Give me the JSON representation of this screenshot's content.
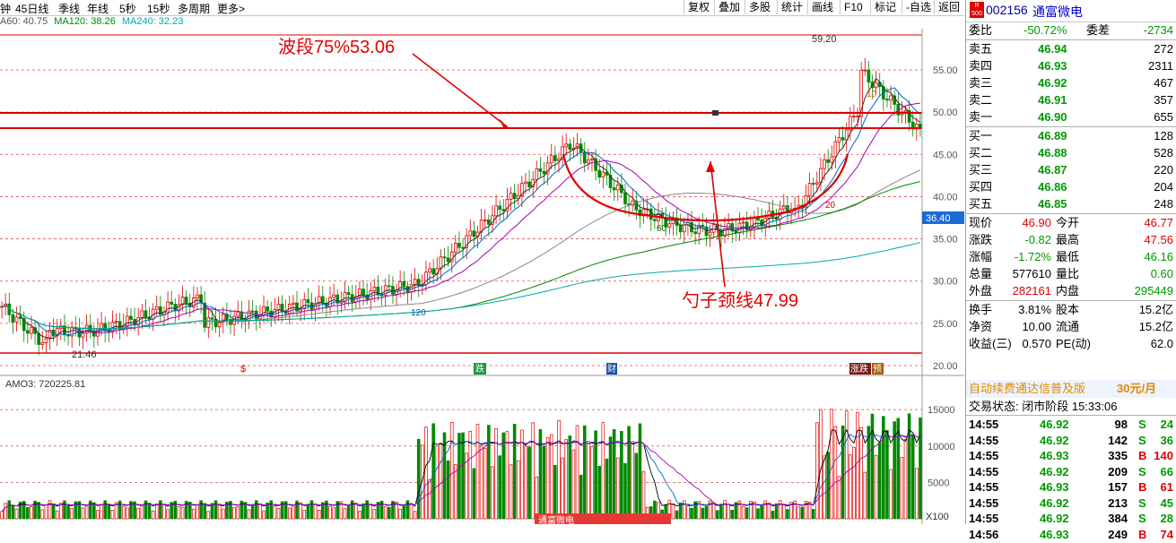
{
  "toolbar": {
    "periods": [
      "钟",
      "45日线",
      "季线",
      "年线",
      "5秒",
      "15秒",
      "多周期",
      "更多>"
    ],
    "buttons": [
      "复权",
      "叠加",
      "多股",
      "统计",
      "画线",
      "F10",
      "标记",
      "-自选",
      "返回"
    ]
  },
  "ma_legend": [
    {
      "label": "A60: 40.75",
      "color": "#555555"
    },
    {
      "label": "MA120: 38.26",
      "color": "#008800"
    },
    {
      "label": "MA240: 32.23",
      "color": "#00aaaa"
    }
  ],
  "annotations": {
    "wave_label": "波段75%53.06",
    "neckline_label": "勺子颈线47.99",
    "high_label": "59.20",
    "low_label": "21.46",
    "current_price_tag": "36.40",
    "ma_marks": [
      "60",
      "120",
      "20",
      "10"
    ],
    "event_markers": [
      "$",
      "跌",
      "财",
      "涨跌",
      "预"
    ]
  },
  "price_axis": {
    "ticks": [
      "55.00",
      "50.00",
      "45.00",
      "40.00",
      "35.00",
      "30.00",
      "25.00",
      "20.00"
    ]
  },
  "volume": {
    "indicator": "AMO3: 720225.81",
    "ticks": [
      "15000",
      "10000",
      "5000"
    ],
    "unit": "X100",
    "tab": "通富微电"
  },
  "chart_data": {
    "type": "candlestick",
    "title": "",
    "ylim": [
      20,
      60
    ],
    "price_levels": {
      "wave_75": 53.06,
      "neckline": 47.99,
      "line_50": 50.0,
      "high": 59.2,
      "low": 21.46
    }
  },
  "quote": {
    "badge": "R 500",
    "code": "002156",
    "name": "通富微电",
    "weibi": {
      "label": "委比",
      "value": "-50.72%",
      "label2": "委差",
      "value2": "-2734"
    },
    "asks": [
      {
        "label": "卖五",
        "price": "46.94",
        "vol": "272"
      },
      {
        "label": "卖四",
        "price": "46.93",
        "vol": "2311"
      },
      {
        "label": "卖三",
        "price": "46.92",
        "vol": "467"
      },
      {
        "label": "卖二",
        "price": "46.91",
        "vol": "357"
      },
      {
        "label": "卖一",
        "price": "46.90",
        "vol": "655"
      }
    ],
    "bids": [
      {
        "label": "买一",
        "price": "46.89",
        "vol": "128"
      },
      {
        "label": "买二",
        "price": "46.88",
        "vol": "528"
      },
      {
        "label": "买三",
        "price": "46.87",
        "vol": "220"
      },
      {
        "label": "买四",
        "price": "46.86",
        "vol": "204"
      },
      {
        "label": "买五",
        "price": "46.85",
        "vol": "248"
      }
    ],
    "stats": [
      {
        "l1": "现价",
        "v1": "46.90",
        "c1": "red",
        "l2": "今开",
        "v2": "46.77",
        "c2": "red"
      },
      {
        "l1": "涨跌",
        "v1": "-0.82",
        "c1": "green",
        "l2": "最高",
        "v2": "47.56",
        "c2": "red"
      },
      {
        "l1": "涨幅",
        "v1": "-1.72%",
        "c1": "green",
        "l2": "最低",
        "v2": "46.16",
        "c2": "green"
      },
      {
        "l1": "总量",
        "v1": "577610",
        "c1": "black",
        "l2": "量比",
        "v2": "0.60",
        "c2": "green"
      },
      {
        "l1": "外盘",
        "v1": "282161",
        "c1": "red",
        "l2": "内盘",
        "v2": "295449",
        "c2": "green"
      }
    ],
    "stats2": [
      {
        "l1": "换手",
        "v1": "3.81%",
        "l2": "股本",
        "v2": "15.2亿"
      },
      {
        "l1": "净资",
        "v1": "10.00",
        "l2": "流通",
        "v2": "15.2亿"
      },
      {
        "l1": "收益(三)",
        "v1": "0.570",
        "l2": "PE(动)",
        "v2": "62.0"
      }
    ],
    "promo": {
      "text": "自动续费通达信普及版",
      "price": "30元/月"
    },
    "trade_status": "交易状态: 闭市阶段 15:33:06",
    "ticks": [
      {
        "time": "14:55",
        "price": "46.92",
        "vol": "98",
        "side": "S",
        "n": "24"
      },
      {
        "time": "14:55",
        "price": "46.92",
        "vol": "142",
        "side": "S",
        "n": "36"
      },
      {
        "time": "14:55",
        "price": "46.93",
        "vol": "335",
        "side": "B",
        "n": "140"
      },
      {
        "time": "14:55",
        "price": "46.92",
        "vol": "209",
        "side": "S",
        "n": "66"
      },
      {
        "time": "14:55",
        "price": "46.93",
        "vol": "157",
        "side": "B",
        "n": "61"
      },
      {
        "time": "14:55",
        "price": "46.92",
        "vol": "213",
        "side": "S",
        "n": "45"
      },
      {
        "time": "14:55",
        "price": "46.92",
        "vol": "384",
        "side": "S",
        "n": "28"
      },
      {
        "time": "14:56",
        "price": "46.93",
        "vol": "249",
        "side": "B",
        "n": "74"
      }
    ]
  }
}
